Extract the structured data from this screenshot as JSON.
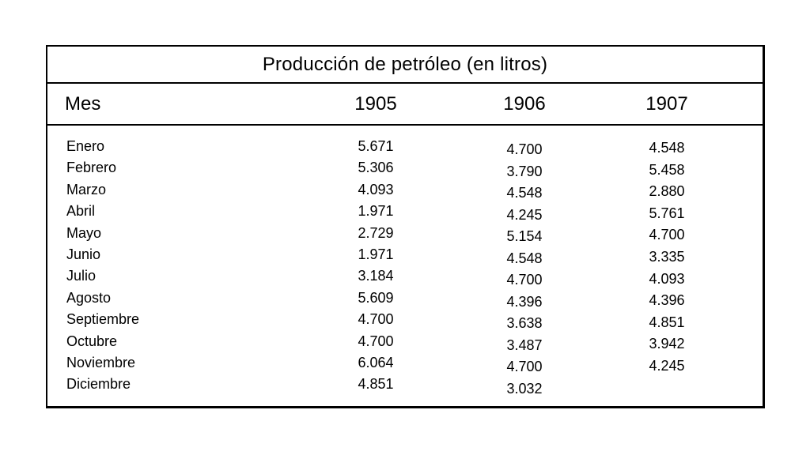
{
  "table": {
    "title": "Producción de petróleo (en litros)",
    "header": {
      "month_label": "Mes",
      "years": [
        "1905",
        "1906",
        "1907"
      ]
    },
    "months": [
      "Enero",
      "Febrero",
      "Marzo",
      "Abril",
      "Mayo",
      "Junio",
      "Julio",
      "Agosto",
      "Septiembre",
      "Octubre",
      "Noviembre",
      "Diciembre"
    ],
    "values_1905": [
      "5.671",
      "5.306",
      "4.093",
      "1.971",
      "2.729",
      "1.971",
      "3.184",
      "5.609",
      "4.700",
      "4.700",
      "6.064",
      "4.851"
    ],
    "values_1906": [
      "4.700",
      "3.790",
      "4.548",
      "4.245",
      "5.154",
      "4.548",
      "4.700",
      "4.396",
      "3.638",
      "3.487",
      "4.700",
      "3.032"
    ],
    "values_1907": [
      "4.548",
      "5.458",
      "2.880",
      "5.761",
      "4.700",
      "3.335",
      "4.093",
      "4.396",
      "4.851",
      "3.942",
      "4.245"
    ]
  },
  "colors": {
    "border": "#000000",
    "text": "#000000",
    "background": "#ffffff"
  },
  "chart_data": {
    "type": "table",
    "title": "Producción de petróleo (en litros)",
    "unit": "litros",
    "categories": [
      "Enero",
      "Febrero",
      "Marzo",
      "Abril",
      "Mayo",
      "Junio",
      "Julio",
      "Agosto",
      "Septiembre",
      "Octubre",
      "Noviembre",
      "Diciembre"
    ],
    "series": [
      {
        "name": "1905",
        "values": [
          5671,
          5306,
          4093,
          1971,
          2729,
          1971,
          3184,
          5609,
          4700,
          4700,
          6064,
          4851
        ]
      },
      {
        "name": "1906",
        "values": [
          4700,
          3790,
          4548,
          4245,
          5154,
          4548,
          4700,
          4396,
          3638,
          3487,
          4700,
          3032
        ]
      },
      {
        "name": "1907",
        "values": [
          4548,
          5458,
          2880,
          5761,
          4700,
          3335,
          4093,
          4396,
          4851,
          3942,
          4245,
          null
        ]
      }
    ]
  }
}
